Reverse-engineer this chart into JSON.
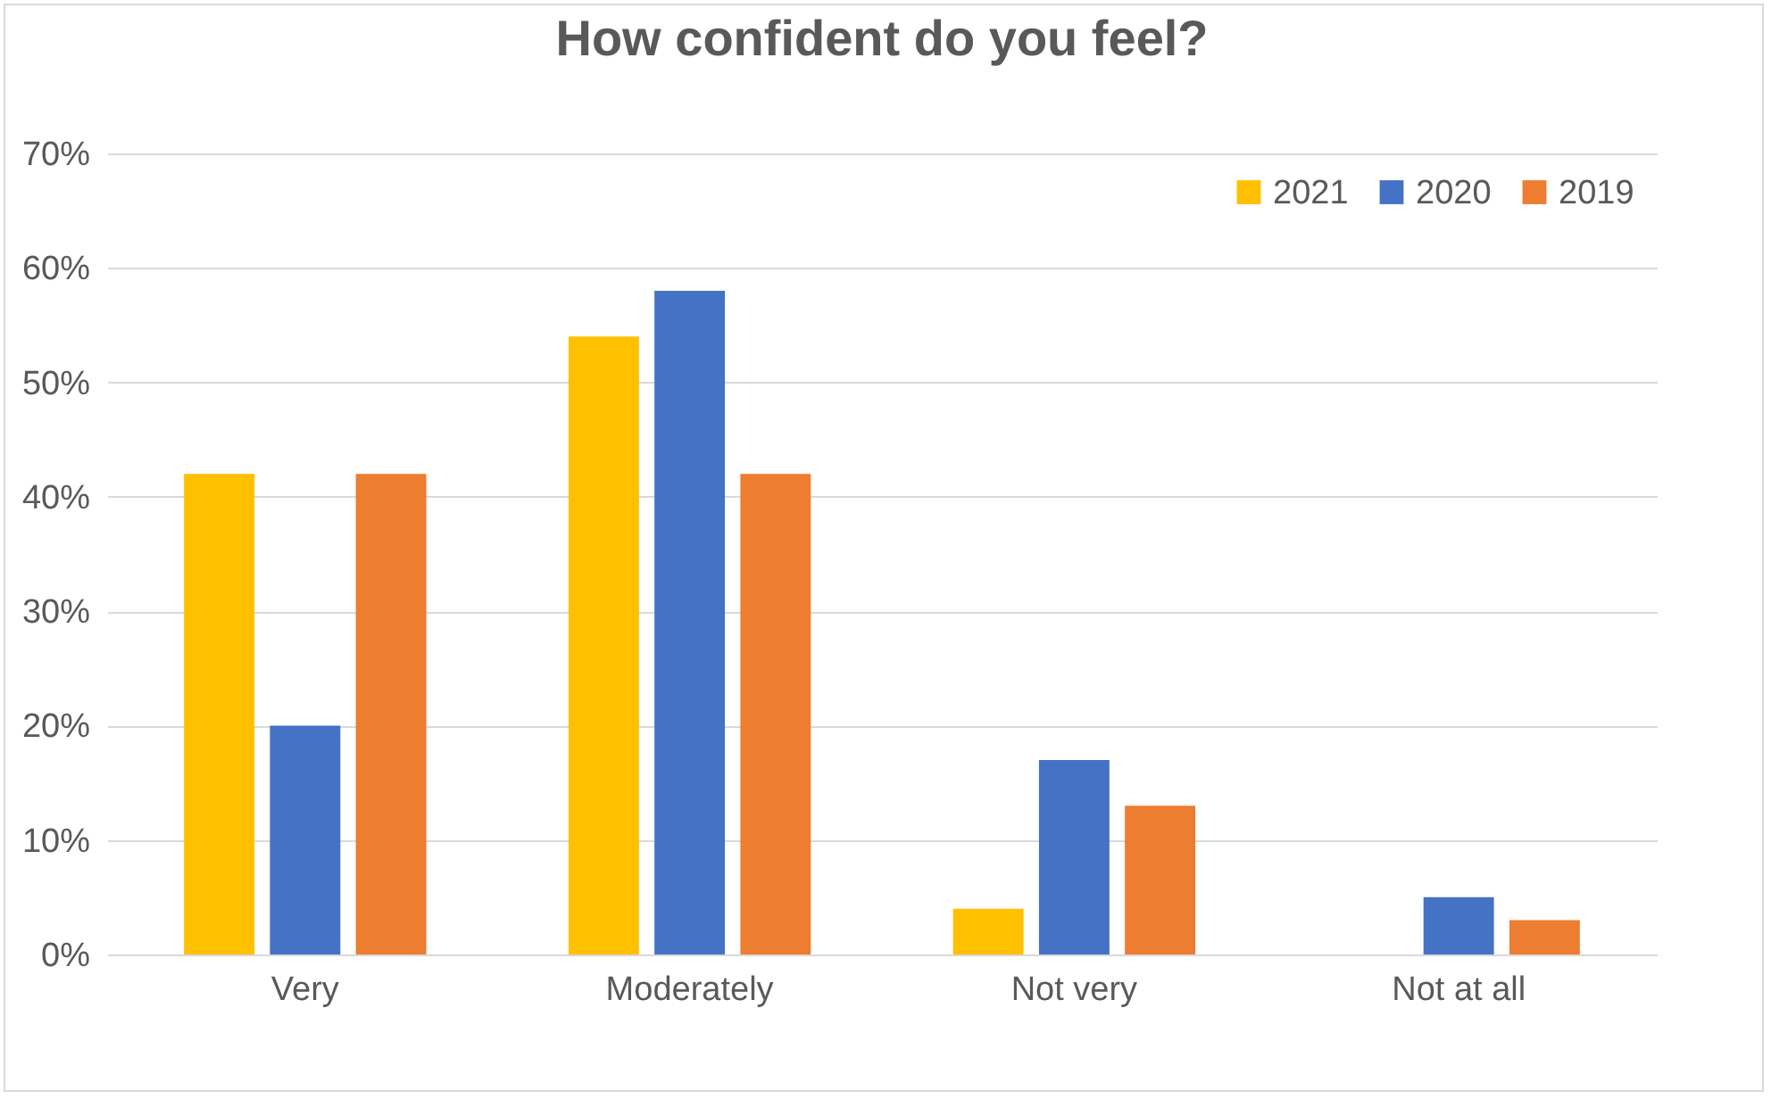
{
  "chart_data": {
    "type": "bar",
    "title": "How confident do you feel?",
    "categories": [
      "Very",
      "Moderately",
      "Not very",
      "Not at all"
    ],
    "series": [
      {
        "name": "2021",
        "color": "#ffc000",
        "values": [
          0.42,
          0.54,
          0.04,
          0
        ]
      },
      {
        "name": "2020",
        "color": "#4472c4",
        "values": [
          0.2,
          0.58,
          0.17,
          0.05
        ]
      },
      {
        "name": "2019",
        "color": "#ed7d31",
        "values": [
          0.42,
          0.42,
          0.13,
          0.03
        ]
      }
    ],
    "ylim": [
      0,
      0.7
    ],
    "yticks": [
      {
        "value": 0,
        "label": "0%"
      },
      {
        "value": 0.1,
        "label": "10%"
      },
      {
        "value": 0.2,
        "label": "20%"
      },
      {
        "value": 0.3,
        "label": "30%"
      },
      {
        "value": 0.4,
        "label": "40%"
      },
      {
        "value": 0.5,
        "label": "50%"
      },
      {
        "value": 0.6,
        "label": "60%"
      },
      {
        "value": 0.7,
        "label": "70%"
      }
    ],
    "grid": "y",
    "legend": "top right"
  }
}
